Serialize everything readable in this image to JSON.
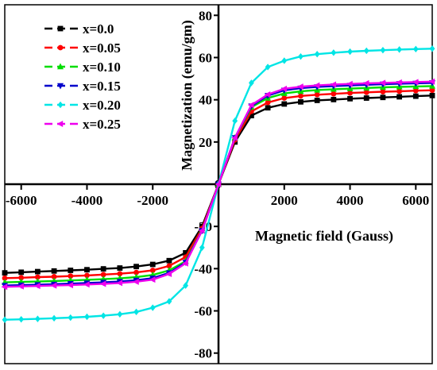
{
  "chart_data": {
    "type": "line",
    "xlabel": "Magnetic field (Gauss)",
    "ylabel": "Magnetization (emu/gm)",
    "xlim": [
      -6500,
      6500
    ],
    "ylim": [
      -85,
      85
    ],
    "x_ticks": [
      -6000,
      -4000,
      -2000,
      0,
      2000,
      4000,
      6000
    ],
    "x_tick_labels": [
      "-6000",
      "-4000",
      "-2000",
      "0",
      "2000",
      "4000",
      "6000"
    ],
    "y_ticks": [
      -80,
      -60,
      -40,
      -20,
      0,
      20,
      40,
      60,
      80
    ],
    "y_tick_labels": [
      "-80",
      "-60",
      "-40",
      "-20",
      "0",
      "20",
      "40",
      "60",
      "80"
    ],
    "grid": false,
    "legend_position": "top-left",
    "x": [
      -6500,
      -6000,
      -5500,
      -5000,
      -4500,
      -4000,
      -3500,
      -3000,
      -2500,
      -2000,
      -1500,
      -1000,
      -500,
      0,
      500,
      1000,
      1500,
      2000,
      2500,
      3000,
      3500,
      4000,
      4500,
      5000,
      5500,
      6000,
      6500
    ],
    "series": [
      {
        "name": "x=0.0",
        "color": "#000000",
        "marker": "square",
        "values": [
          -42.0,
          -41.7,
          -41.4,
          -41.1,
          -40.8,
          -40.5,
          -40.1,
          -39.7,
          -39.0,
          -38.0,
          -36.2,
          -32.5,
          -20.0,
          0,
          20.0,
          32.5,
          36.2,
          38.0,
          39.0,
          39.7,
          40.1,
          40.5,
          40.8,
          41.1,
          41.4,
          41.7,
          42.0
        ]
      },
      {
        "name": "x=0.05",
        "color": "#ff0000",
        "marker": "circle",
        "values": [
          -44.5,
          -44.3,
          -44.0,
          -43.8,
          -43.5,
          -43.2,
          -42.8,
          -42.4,
          -41.8,
          -40.8,
          -38.7,
          -34.5,
          -21.0,
          0,
          21.0,
          34.5,
          38.7,
          40.8,
          41.8,
          42.4,
          42.8,
          43.2,
          43.5,
          43.8,
          44.0,
          44.3,
          44.5
        ]
      },
      {
        "name": "x=0.10",
        "color": "#00dd00",
        "marker": "triangle-up",
        "values": [
          -46.5,
          -46.3,
          -46.1,
          -45.9,
          -45.6,
          -45.3,
          -45.0,
          -44.6,
          -44.0,
          -43.0,
          -40.8,
          -36.5,
          -22.0,
          0,
          22.0,
          36.5,
          40.8,
          43.0,
          44.0,
          44.6,
          45.0,
          45.3,
          45.6,
          45.9,
          46.1,
          46.3,
          46.5
        ]
      },
      {
        "name": "x=0.15",
        "color": "#0000cc",
        "marker": "triangle-down",
        "values": [
          -48.0,
          -47.8,
          -47.6,
          -47.4,
          -47.1,
          -46.8,
          -46.5,
          -46.1,
          -45.5,
          -44.5,
          -42.0,
          -37.0,
          -22.0,
          0,
          22.0,
          37.0,
          42.0,
          44.5,
          45.5,
          46.1,
          46.5,
          46.8,
          47.1,
          47.4,
          47.6,
          47.8,
          48.0
        ]
      },
      {
        "name": "x=0.20",
        "color": "#00e5e5",
        "marker": "diamond",
        "values": [
          -64.2,
          -64.0,
          -63.8,
          -63.5,
          -63.2,
          -62.8,
          -62.3,
          -61.6,
          -60.5,
          -58.5,
          -55.5,
          -48.0,
          -30.0,
          0,
          30.0,
          48.0,
          55.5,
          58.5,
          60.5,
          61.6,
          62.3,
          62.8,
          63.2,
          63.5,
          63.8,
          64.0,
          64.2
        ]
      },
      {
        "name": "x=0.25",
        "color": "#ee00ee",
        "marker": "triangle-left",
        "values": [
          -48.6,
          -48.4,
          -48.2,
          -48.0,
          -47.8,
          -47.5,
          -47.2,
          -46.8,
          -46.2,
          -45.2,
          -42.5,
          -37.5,
          -22.0,
          0,
          22.0,
          37.5,
          42.5,
          45.2,
          46.2,
          46.8,
          47.2,
          47.5,
          47.8,
          48.0,
          48.2,
          48.4,
          48.6
        ]
      }
    ]
  }
}
